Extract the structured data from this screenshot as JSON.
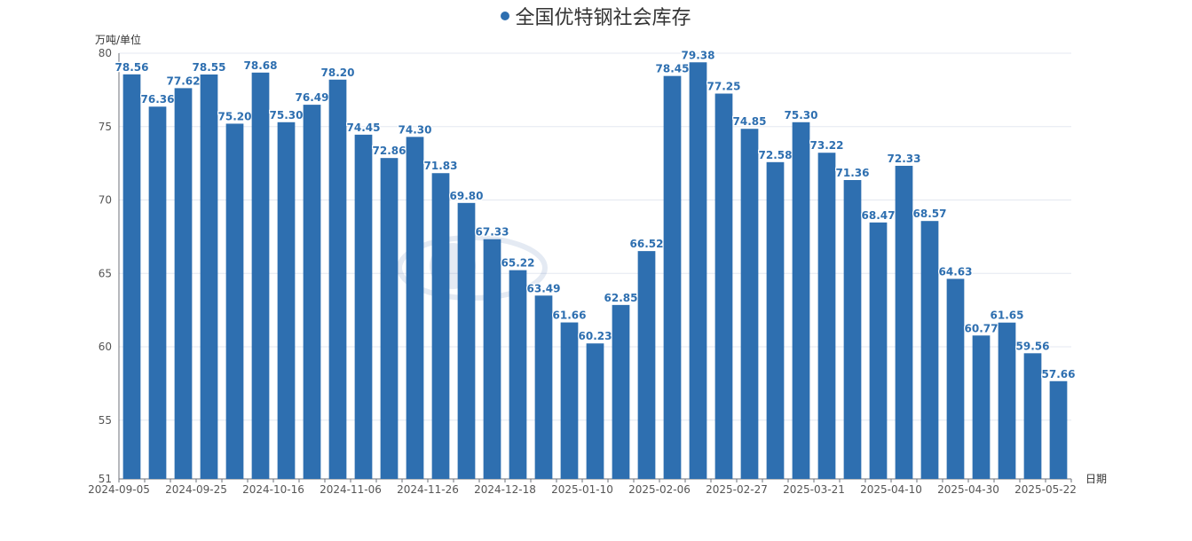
{
  "chart_data": {
    "type": "bar",
    "title": "全国优特钢社会库存",
    "ylabel": "万吨/单位",
    "xlabel": "日期",
    "ylim": [
      51,
      80
    ],
    "yticks": [
      51,
      55,
      60,
      65,
      70,
      75,
      80
    ],
    "xtick_labels": [
      "2024-09-05",
      "2024-09-25",
      "2024-10-16",
      "2024-11-06",
      "2024-11-26",
      "2024-12-18",
      "2025-01-10",
      "2025-02-06",
      "2025-02-27",
      "2025-03-21",
      "2025-04-10",
      "2025-04-30",
      "2025-05-22"
    ],
    "xtick_index": [
      0,
      3,
      6,
      9,
      12,
      15,
      18,
      21,
      24,
      27,
      30,
      33,
      36
    ],
    "values": [
      78.56,
      76.36,
      77.62,
      78.55,
      75.2,
      78.68,
      75.3,
      76.49,
      78.2,
      74.45,
      72.86,
      74.3,
      71.83,
      69.8,
      67.33,
      65.22,
      63.49,
      61.66,
      60.23,
      62.85,
      66.52,
      78.45,
      79.38,
      77.25,
      74.85,
      72.58,
      75.3,
      73.22,
      71.36,
      68.47,
      72.33,
      68.57,
      64.63,
      60.77,
      61.65,
      59.56,
      57.66
    ],
    "color": "#2e6fb0",
    "grid": true
  }
}
